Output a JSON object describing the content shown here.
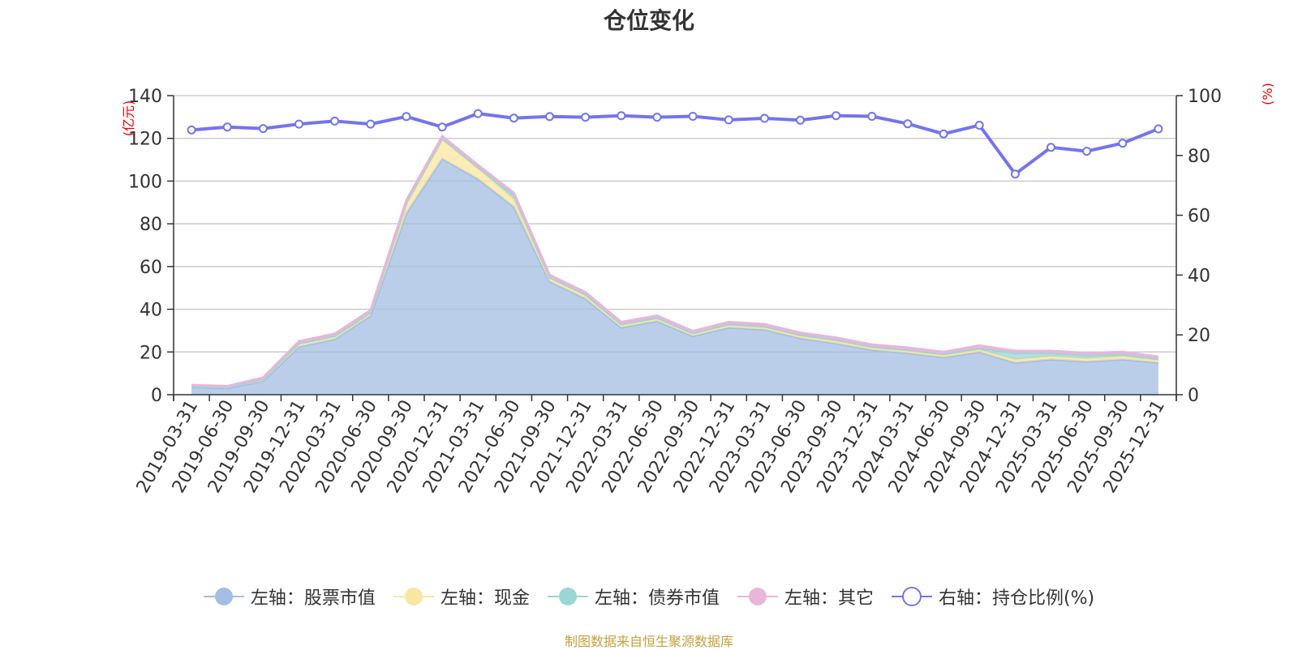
{
  "chart_data": {
    "type": "area",
    "title": "仓位变化",
    "source_note": "制图数据来自恒生聚源数据库",
    "left_axis": {
      "unit_label": "(亿元)",
      "ylim": [
        0,
        140
      ],
      "ticks": [
        0,
        20,
        40,
        60,
        80,
        100,
        120,
        140
      ]
    },
    "right_axis": {
      "unit_label": "(%)",
      "ylim": [
        0,
        100
      ],
      "ticks": [
        0,
        20,
        40,
        60,
        80,
        100
      ]
    },
    "categories": [
      "2019-03-31",
      "2019-06-30",
      "2019-09-30",
      "2019-12-31",
      "2020-03-31",
      "2020-06-30",
      "2020-09-30",
      "2020-12-31",
      "2021-03-31",
      "2021-06-30",
      "2021-09-30",
      "2021-12-31",
      "2022-03-31",
      "2022-06-30",
      "2022-09-30",
      "2022-12-31",
      "2023-03-31",
      "2023-06-30",
      "2023-09-30",
      "2023-12-31",
      "2024-03-31",
      "2024-06-30",
      "2024-09-30",
      "2024-12-31",
      "2025-03-31",
      "2025-06-30",
      "2025-09-30",
      "2025-12-31"
    ],
    "series": [
      {
        "name": "左轴：股票市值",
        "axis": "left",
        "stacked": true,
        "color": "#a3bde3",
        "values": [
          3.5,
          3.0,
          6.5,
          22.5,
          26.0,
          37.0,
          85.0,
          110.5,
          101.0,
          88.0,
          53.0,
          45.0,
          31.5,
          34.5,
          27.5,
          31.5,
          30.5,
          26.5,
          24.0,
          21.0,
          19.5,
          17.5,
          20.0,
          15.0,
          16.5,
          15.5,
          16.5,
          15.0
        ]
      },
      {
        "name": "左轴：现金",
        "axis": "left",
        "stacked": true,
        "color": "#f9e6a0",
        "values": [
          0.5,
          0.5,
          1.0,
          1.5,
          1.5,
          1.5,
          4.0,
          9.0,
          5.0,
          3.5,
          1.5,
          1.5,
          1.0,
          1.0,
          0.8,
          1.0,
          1.0,
          1.0,
          1.2,
          1.0,
          1.0,
          1.0,
          1.0,
          1.5,
          1.5,
          1.5,
          1.5,
          1.0
        ]
      },
      {
        "name": "左轴：债券市值",
        "axis": "left",
        "stacked": true,
        "color": "#9ad6d5",
        "values": [
          0,
          0,
          0,
          0,
          0,
          0,
          1.0,
          0.5,
          0.5,
          2.0,
          0.5,
          0.5,
          0.5,
          0.5,
          0.5,
          0.5,
          0.5,
          0.5,
          0.5,
          0.5,
          0.5,
          0.5,
          0.8,
          3.0,
          1.5,
          1.5,
          1.0,
          0.8
        ]
      },
      {
        "name": "左轴：其它",
        "axis": "left",
        "stacked": true,
        "color": "#e8b6da",
        "values": [
          0.5,
          0.5,
          0.5,
          1.0,
          1.0,
          1.0,
          1.0,
          1.0,
          1.0,
          1.0,
          1.0,
          1.0,
          1.0,
          1.0,
          1.0,
          1.0,
          1.0,
          1.0,
          1.0,
          1.0,
          1.0,
          1.0,
          1.2,
          1.0,
          1.0,
          1.0,
          1.0,
          1.0
        ]
      },
      {
        "name": "右轴：持仓比例(%)",
        "axis": "right",
        "stacked": false,
        "color": "#7474ee",
        "values": [
          88.5,
          89.5,
          89.0,
          90.5,
          91.5,
          90.5,
          93.0,
          89.5,
          94.0,
          92.5,
          93.0,
          92.8,
          93.3,
          92.8,
          93.1,
          91.9,
          92.4,
          91.8,
          93.3,
          93.1,
          90.6,
          87.2,
          90.1,
          73.8,
          82.7,
          81.4,
          84.1,
          88.9
        ]
      }
    ]
  }
}
